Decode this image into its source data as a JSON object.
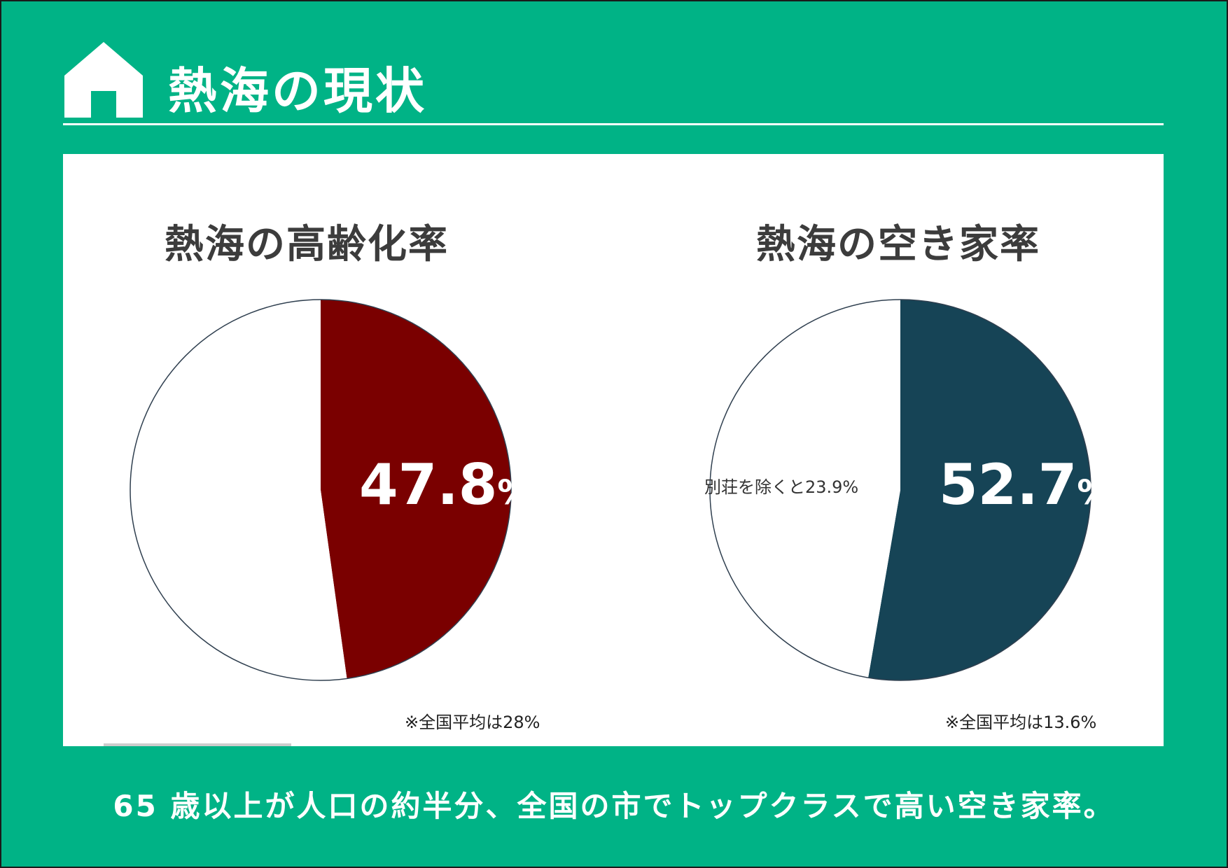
{
  "page": {
    "title": "熱海の現状",
    "icon": "home-icon"
  },
  "colors": {
    "background": "#00B386",
    "aging": "#7A0000",
    "vacancy": "#164456",
    "remainder": "#FFFFFF"
  },
  "chart_data": [
    {
      "type": "pie",
      "title": "熱海の高齢化率",
      "slices": [
        {
          "label": "47.8%",
          "value": 47.8,
          "color": "#7A0000"
        },
        {
          "label": "",
          "value": 52.2,
          "color": "#FFFFFF"
        }
      ],
      "value_label": {
        "number": "47.8",
        "unit": "%"
      },
      "note": "※全国平均は28%"
    },
    {
      "type": "pie",
      "title": "熱海の空き家率",
      "slices": [
        {
          "label": "52.7%",
          "value": 52.7,
          "color": "#164456"
        },
        {
          "label": "別荘を除くと23.9%",
          "value": 47.3,
          "color": "#FFFFFF"
        }
      ],
      "value_label": {
        "number": "52.7",
        "unit": "%"
      },
      "secondary_label": "別荘を除くと23.9%",
      "note": "※全国平均は13.6%"
    }
  ],
  "caption": "65 歳以上が人口の約半分、全国の市でトップクラスで高い空き家率。"
}
